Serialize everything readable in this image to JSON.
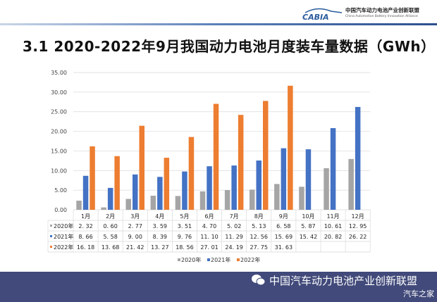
{
  "header": {
    "logo_text": "CABIA",
    "org_name_cn": "中国汽车动力电池产业创新联盟",
    "org_name_en": "China Automotive Battery Innovation Alliance"
  },
  "title": "3.1 2020-2022年9月我国动力电池月度装车量数据（GWh）",
  "chart_data": {
    "type": "bar",
    "title": "",
    "categories": [
      "1月",
      "2月",
      "3月",
      "4月",
      "5月",
      "6月",
      "7月",
      "8月",
      "9月",
      "10月",
      "11月",
      "12月"
    ],
    "ylim": [
      0,
      35
    ],
    "yticks": [
      "0.00",
      "5.00",
      "10.00",
      "15.00",
      "20.00",
      "25.00",
      "30.00",
      "35.00"
    ],
    "grid": true,
    "legend_position": "bottom",
    "data_table": true,
    "series": [
      {
        "name": "2020年",
        "color": "#a5a5a5",
        "values": [
          2.32,
          0.6,
          2.77,
          3.59,
          3.51,
          4.7,
          5.02,
          5.13,
          6.58,
          5.87,
          10.61,
          12.95
        ],
        "labels": [
          "2. 32",
          "0. 60",
          "2. 77",
          "3. 59",
          "3. 51",
          "4. 70",
          "5. 02",
          "5. 13",
          "6. 58",
          "5. 87",
          "10. 61",
          "12. 95"
        ]
      },
      {
        "name": "2021年",
        "color": "#4472c4",
        "values": [
          8.66,
          5.58,
          9.0,
          8.39,
          9.76,
          11.1,
          11.29,
          12.56,
          15.69,
          15.42,
          20.82,
          26.22
        ],
        "labels": [
          "8. 66",
          "5. 58",
          "9. 00",
          "8. 39",
          "9. 76",
          "11. 10",
          "11. 29",
          "12. 56",
          "15. 69",
          "15. 42",
          "20. 82",
          "26. 22"
        ]
      },
      {
        "name": "2022年",
        "color": "#ed7d31",
        "values": [
          16.18,
          13.68,
          21.42,
          13.27,
          18.56,
          27.01,
          24.19,
          27.75,
          31.63,
          null,
          null,
          null
        ],
        "labels": [
          "16. 18",
          "13. 68",
          "21. 42",
          "13. 27",
          "18. 56",
          "27. 01",
          "24. 19",
          "27. 75",
          "31. 63",
          "",
          "",
          ""
        ]
      }
    ]
  },
  "footer": {
    "icon": "wechat-icon",
    "text": "中国汽车动力电池产业创新联盟",
    "watermark": "汽车之家"
  }
}
